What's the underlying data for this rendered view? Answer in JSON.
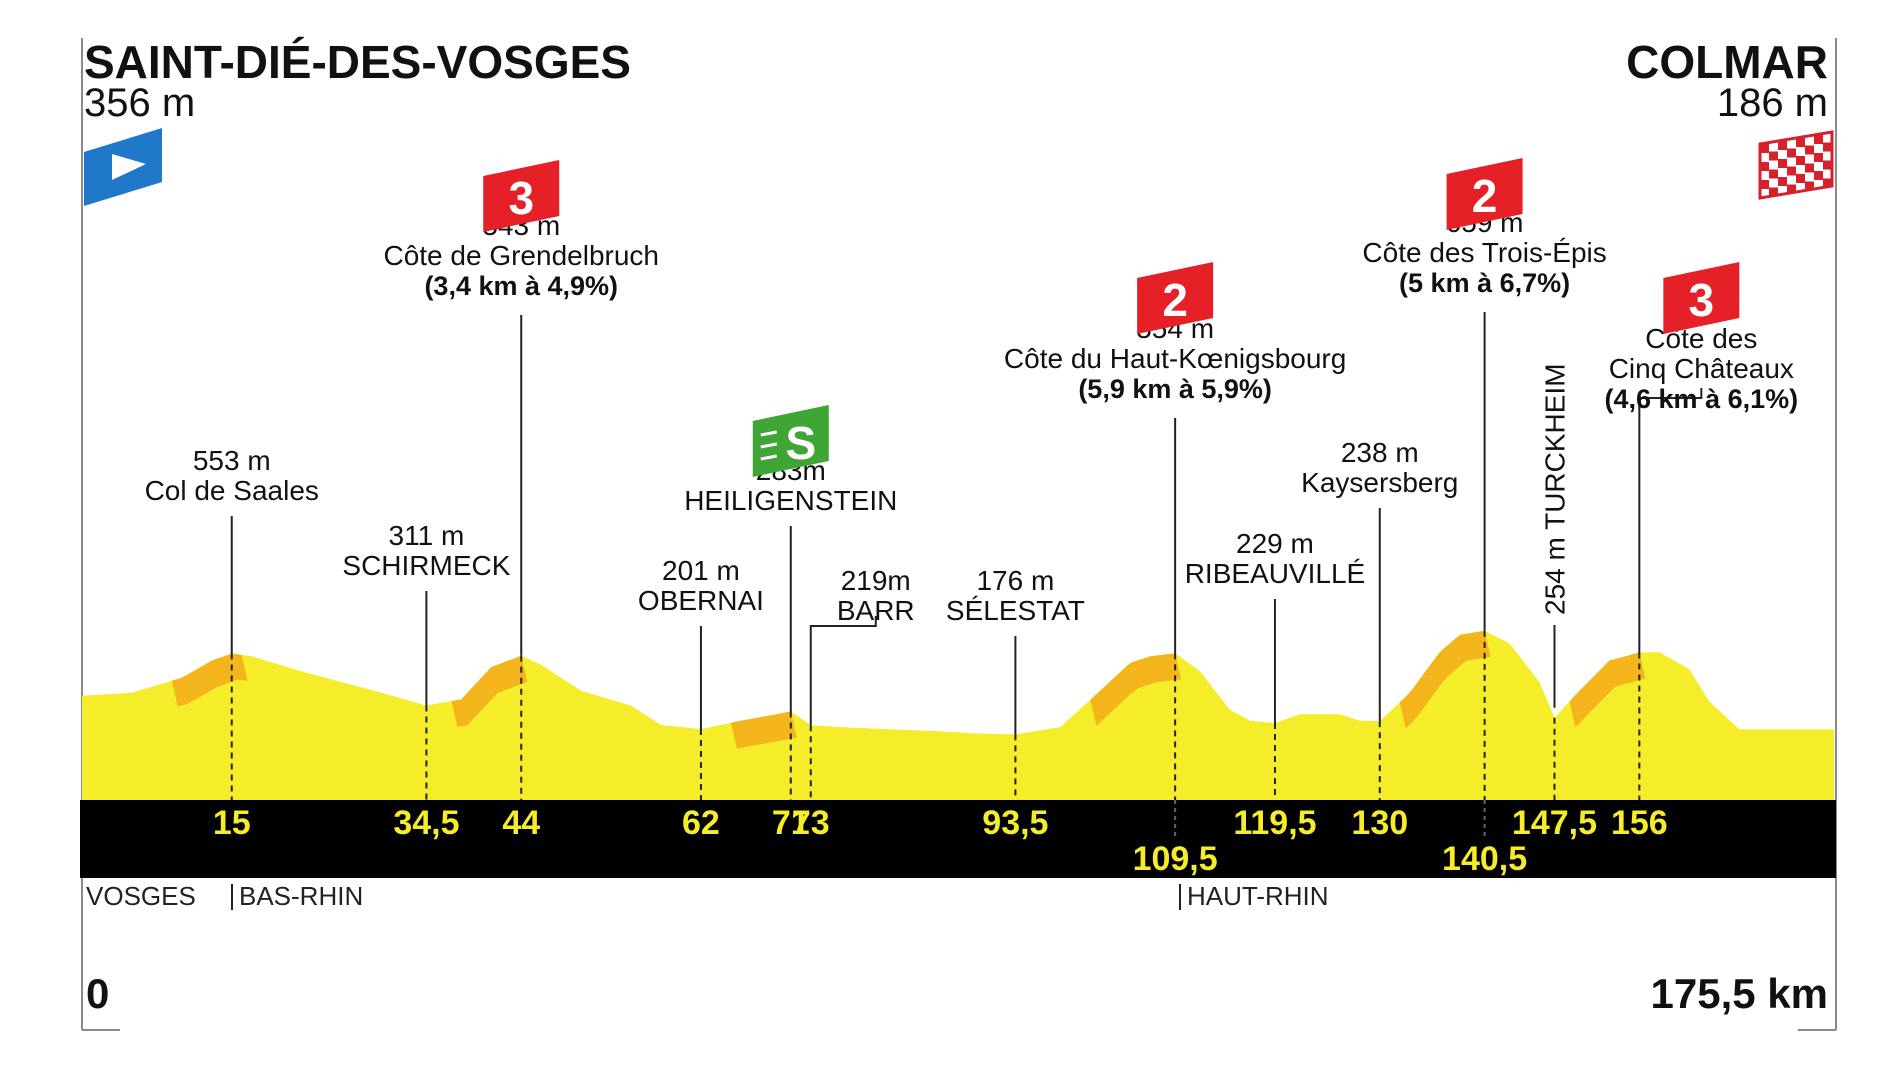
{
  "start": {
    "name": "SAINT-DIÉ-DES-VOSGES",
    "altitude": "356 m"
  },
  "finish": {
    "name": "COLMAR",
    "altitude": "186 m"
  },
  "axis": {
    "start_label": "0",
    "end_label": "175,5 km"
  },
  "departments": [
    "VOSGES",
    "BAS-RHIN",
    "HAUT-RHIN"
  ],
  "colors": {
    "profile": "#f5ec2a",
    "climb": "#f3b41c",
    "band": "#000000",
    "km": "#f5ec2a",
    "kom": "#e52027",
    "sprint": "#3fa535",
    "start": "#1f78c8"
  },
  "chart_data": {
    "type": "area",
    "title": "",
    "xlabel": "",
    "ylabel": "",
    "x_range": [
      0,
      175.5
    ],
    "profile_km": [
      0,
      5,
      10,
      13,
      15,
      17,
      22,
      26,
      30,
      34.5,
      38,
      41,
      44,
      46,
      50,
      55,
      58,
      62,
      66,
      69,
      71,
      73,
      76,
      81,
      86,
      90,
      93.5,
      98,
      102,
      105,
      107,
      109.5,
      112,
      115,
      117,
      119.5,
      122,
      126,
      128,
      130,
      133,
      136,
      138,
      140.5,
      143,
      146,
      147.5,
      150,
      153,
      156,
      158,
      161,
      163,
      166,
      175.5
    ],
    "profile_alt": [
      356,
      370,
      440,
      520,
      553,
      540,
      470,
      420,
      370,
      311,
      340,
      490,
      543,
      500,
      380,
      310,
      220,
      201,
      240,
      265,
      283,
      219,
      210,
      200,
      190,
      180,
      176,
      210,
      380,
      510,
      540,
      554,
      470,
      290,
      240,
      229,
      270,
      270,
      240,
      238,
      370,
      560,
      640,
      659,
      600,
      420,
      254,
      380,
      520,
      558,
      560,
      480,
      330,
      200,
      200
    ],
    "points": [
      {
        "km": "15",
        "alt": "553 m",
        "name": "Col de Saales",
        "row": 0
      },
      {
        "km": "34,5",
        "alt": "311 m",
        "name": "SCHIRMECK",
        "row": 0
      },
      {
        "km": "44",
        "alt": "543 m",
        "name": "Côte de Grendelbruch",
        "detail": "(3,4 km à 4,9%)",
        "category": "3",
        "row": 0
      },
      {
        "km": "62",
        "alt": "201 m",
        "name": "OBERNAI",
        "row": 0
      },
      {
        "km": "71",
        "alt": "283m",
        "name": "HEILIGENSTEIN",
        "sprint": "S",
        "row": 0
      },
      {
        "km": "73",
        "alt": "219m",
        "name": "BARR",
        "row": 0
      },
      {
        "km": "93,5",
        "alt": "176 m",
        "name": "SÉLESTAT",
        "row": 0
      },
      {
        "km": "109,5",
        "alt": "554 m",
        "name": "Côte du Haut-Kœnigsbourg",
        "detail": "(5,9 km à 5,9%)",
        "category": "2",
        "row": 1
      },
      {
        "km": "119,5",
        "alt": "229 m",
        "name": "RIBEAUVILLÉ",
        "row": 0
      },
      {
        "km": "130",
        "alt": "238 m",
        "name": "Kaysersberg",
        "row": 0
      },
      {
        "km": "140,5",
        "alt": "659 m",
        "name": "Côte des Trois-Épis",
        "detail": "(5 km à 6,7%)",
        "category": "2",
        "row": 1
      },
      {
        "km": "147,5",
        "alt": "254 m",
        "name": "TURCKHEIM",
        "row": 0
      },
      {
        "km": "156",
        "alt": "558 m",
        "name": "Côte des",
        "name2": "Cinq Châteaux",
        "detail": "(4,6 km à 6,1%)",
        "category": "3",
        "row": 0
      }
    ]
  }
}
